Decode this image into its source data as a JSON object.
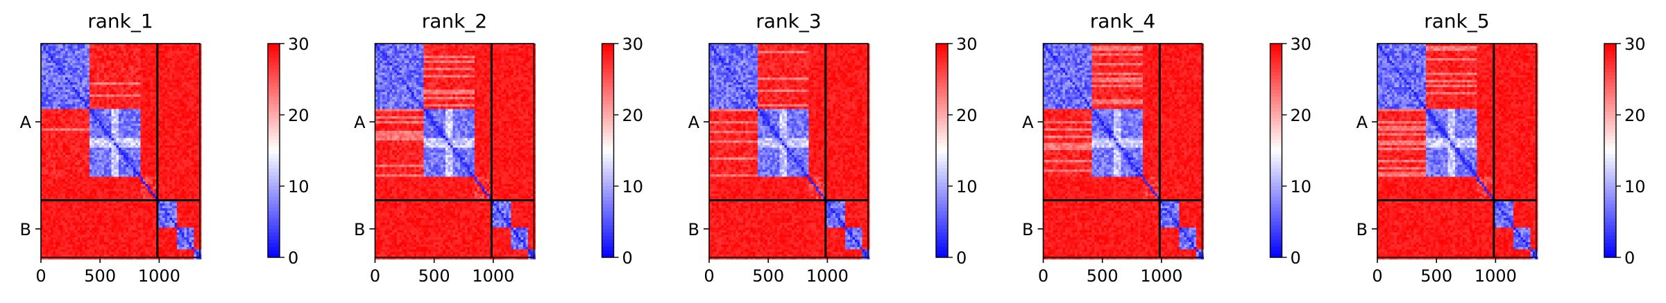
{
  "chart_data": {
    "type": "heatmap",
    "colormap": {
      "name": "bwr",
      "low_color": "#0000ff",
      "mid_color": "#ffffff",
      "high_color": "#ff0000",
      "vmin": 0,
      "vmax": 30,
      "ticks": [
        "0",
        "10",
        "20",
        "30"
      ]
    },
    "matrix_size": 1344,
    "chain_boundary": 985,
    "xlim": [
      0,
      1344
    ],
    "x_ticks": [
      {
        "value": 0,
        "label": "0"
      },
      {
        "value": 500,
        "label": "500"
      },
      {
        "value": 1000,
        "label": "1000"
      }
    ],
    "y_ticks": [
      {
        "value": 492,
        "label": "A"
      },
      {
        "value": 1165,
        "label": "B"
      }
    ],
    "domains": [
      {
        "start": 0,
        "end": 410,
        "label": ""
      },
      {
        "start": 410,
        "end": 840,
        "label": ""
      },
      {
        "start": 840,
        "end": 985,
        "label": ""
      },
      {
        "start": 985,
        "end": 1150,
        "label": ""
      },
      {
        "start": 1150,
        "end": 1300,
        "label": ""
      },
      {
        "start": 1300,
        "end": 1344,
        "label": ""
      }
    ],
    "panels": [
      {
        "title": "rank_1"
      },
      {
        "title": "rank_2"
      },
      {
        "title": "rank_3"
      },
      {
        "title": "rank_4"
      },
      {
        "title": "rank_5"
      }
    ]
  }
}
